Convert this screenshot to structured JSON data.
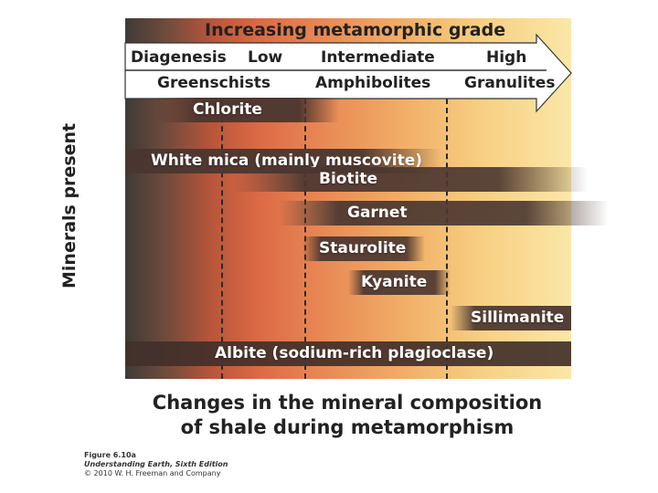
{
  "header": {
    "title": "Increasing metamorphic grade",
    "grade_row": [
      "Diagenesis",
      "Low",
      "Intermediate",
      "High"
    ],
    "facies_row": [
      "Greenschists",
      "Amphibolites",
      "Granulites"
    ]
  },
  "y_axis_label": "Minerals present",
  "minerals": [
    {
      "name": "Chlorite"
    },
    {
      "name": "White mica (mainly muscovite)"
    },
    {
      "name": "Biotite"
    },
    {
      "name": "Garnet"
    },
    {
      "name": "Staurolite"
    },
    {
      "name": "Kyanite"
    },
    {
      "name": "Sillimanite"
    },
    {
      "name": "Albite (sodium-rich plagioclase)"
    }
  ],
  "caption": [
    "Changes in the mineral composition",
    "of shale during metamorphism"
  ],
  "credit": {
    "figure": "Figure 6.10a",
    "book": "Understanding Earth, Sixth Edition",
    "copyright": "© 2010 W. H. Freeman and Company"
  },
  "colors": {
    "band_dark": "#4a3630",
    "arrow_fill": "#ffffff",
    "gradient_left": "#3f3a36",
    "gradient_right": "#fbe7a8"
  }
}
